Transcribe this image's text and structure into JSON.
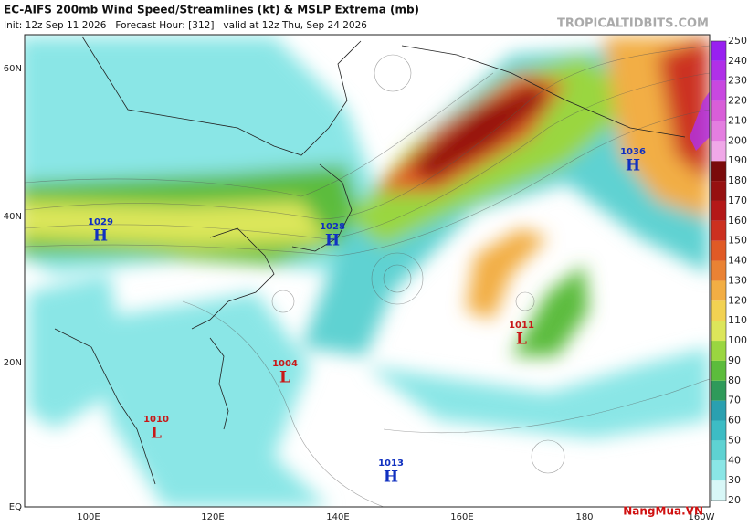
{
  "header": {
    "title": "EC-AIFS 200mb Wind Speed/Streamlines (kt) & MSLP Extrema (mb)",
    "subtitle": "Init: 12z Sep 11 2026   Forecast Hour: [312]   valid at 12z Thu, Sep 24 2026",
    "source": "TROPICALTIDBITS.COM"
  },
  "map": {
    "lat_labels": [
      "60N",
      "40N",
      "20N",
      "EQ"
    ],
    "lon_labels": [
      "100E",
      "120E",
      "140E",
      "160E",
      "180",
      "160W"
    ],
    "pressure_centers": [
      {
        "type": "H",
        "value": "1029"
      },
      {
        "type": "H",
        "value": "1028"
      },
      {
        "type": "H",
        "value": "1036"
      },
      {
        "type": "L",
        "value": "1011"
      },
      {
        "type": "L",
        "value": "1004"
      },
      {
        "type": "L",
        "value": "1010"
      },
      {
        "type": "H",
        "value": "1013"
      }
    ]
  },
  "colorbar": {
    "levels": [
      20,
      30,
      40,
      50,
      60,
      70,
      80,
      90,
      100,
      110,
      120,
      130,
      140,
      150,
      160,
      170,
      180,
      190,
      200,
      210,
      220,
      230,
      240,
      250
    ],
    "colors": [
      "#d8f7f7",
      "#8ae6e6",
      "#5ed2d2",
      "#3dbcc4",
      "#2aa0b0",
      "#2f9a5a",
      "#5cbc3c",
      "#9ad640",
      "#dce65a",
      "#f2d252",
      "#f2ae44",
      "#ea8234",
      "#e05a26",
      "#cc3020",
      "#b41818",
      "#961010",
      "#7a0a0a",
      "#f0a8e8",
      "#e47ee0",
      "#d85ed8",
      "#c848e0",
      "#b030e8",
      "#9820f0",
      "#8010f8"
    ]
  },
  "watermark": "NangMua.VN"
}
